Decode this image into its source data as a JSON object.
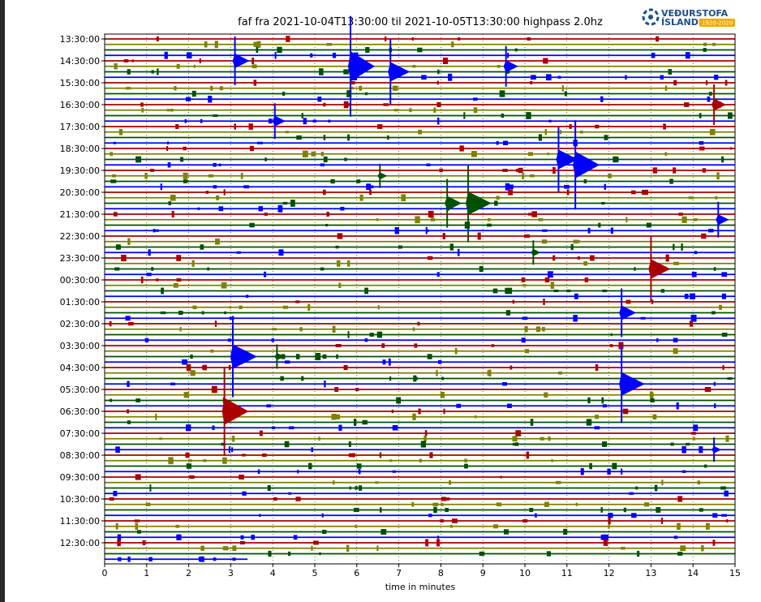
{
  "header": {
    "logo_line1": "VEÐURSTOFA",
    "logo_line2": "ÍSLANDS",
    "logo_badge": "1920-2020",
    "logo_icon": "vedurstofa-emblem-icon"
  },
  "colors": {
    "red": "#aa0000",
    "olive": "#808000",
    "green": "#005000",
    "blue": "#0000ff",
    "frame": "#000000"
  },
  "chart_data": {
    "type": "line",
    "title": "faf fra 2021-10-04T13:30:00 til 2021-10-05T13:30:00 highpass 2.0hz",
    "xlabel": "time in minutes",
    "ylabel": "",
    "xlim": [
      0,
      15
    ],
    "x_ticks": [
      "0",
      "1",
      "2",
      "3",
      "4",
      "5",
      "6",
      "7",
      "8",
      "9",
      "10",
      "11",
      "12",
      "13",
      "14",
      "15"
    ],
    "y_tick_labels": [
      "13:30:00",
      "14:30:00",
      "15:30:00",
      "16:30:00",
      "17:30:00",
      "18:30:00",
      "19:30:00",
      "20:30:00",
      "21:30:00",
      "22:30:00",
      "23:30:00",
      "00:30:00",
      "01:30:00",
      "02:30:00",
      "03:30:00",
      "04:30:00",
      "05:30:00",
      "06:30:00",
      "07:30:00",
      "08:30:00",
      "09:30:00",
      "10:30:00",
      "11:30:00",
      "12:30:00"
    ],
    "trace_count": 96,
    "trace_color_cycle": [
      "red",
      "olive",
      "green",
      "blue"
    ],
    "grid": "vertical dotted",
    "events": [
      {
        "t": 5.85,
        "trace": 5,
        "amplitude": 62,
        "color": "blue"
      },
      {
        "t": 6.8,
        "trace": 6,
        "amplitude": 40,
        "color": "blue"
      },
      {
        "t": 3.1,
        "trace": 4,
        "amplitude": 30,
        "color": "blue"
      },
      {
        "t": 11.2,
        "trace": 23,
        "amplitude": 55,
        "color": "blue"
      },
      {
        "t": 10.8,
        "trace": 22,
        "amplitude": 40,
        "color": "blue"
      },
      {
        "t": 8.65,
        "trace": 30,
        "amplitude": 48,
        "color": "green"
      },
      {
        "t": 8.15,
        "trace": 30,
        "amplitude": 30,
        "color": "green"
      },
      {
        "t": 13.0,
        "trace": 42,
        "amplitude": 40,
        "color": "red"
      },
      {
        "t": 12.3,
        "trace": 63,
        "amplitude": 48,
        "color": "blue"
      },
      {
        "t": 12.3,
        "trace": 50,
        "amplitude": 30,
        "color": "blue"
      },
      {
        "t": 2.85,
        "trace": 68,
        "amplitude": 55,
        "color": "red"
      },
      {
        "t": 3.05,
        "trace": 58,
        "amplitude": 50,
        "color": "blue"
      },
      {
        "t": 9.55,
        "trace": 5,
        "amplitude": 25,
        "color": "blue"
      },
      {
        "t": 14.5,
        "trace": 12,
        "amplitude": 25,
        "color": "red"
      },
      {
        "t": 14.6,
        "trace": 33,
        "amplitude": 22,
        "color": "blue"
      },
      {
        "t": 4.05,
        "trace": 15,
        "amplitude": 22,
        "color": "blue"
      },
      {
        "t": 6.55,
        "trace": 25,
        "amplitude": 15,
        "color": "green"
      },
      {
        "t": 10.2,
        "trace": 39,
        "amplitude": 15,
        "color": "green"
      },
      {
        "t": 4.1,
        "trace": 58,
        "amplitude": 15,
        "color": "green"
      },
      {
        "t": 14.5,
        "trace": 75,
        "amplitude": 15,
        "color": "blue"
      }
    ]
  }
}
